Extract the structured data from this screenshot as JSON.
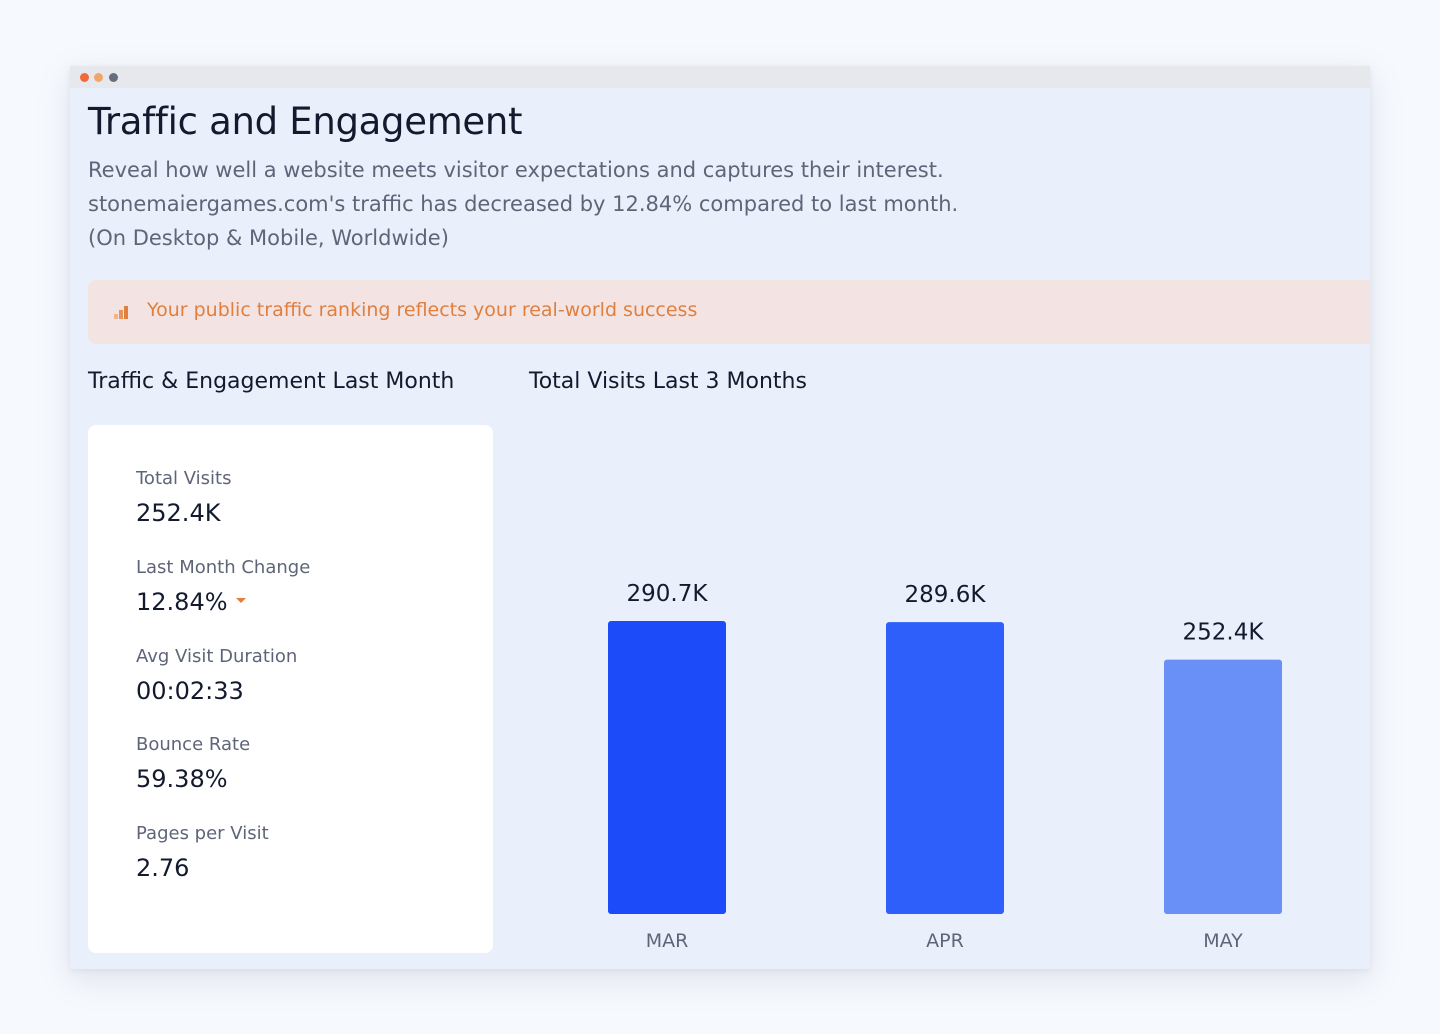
{
  "window": {
    "dots": [
      {
        "name": "window-dot-red",
        "color": "#f06b3c"
      },
      {
        "name": "window-dot-orange",
        "color": "#f2a56a"
      },
      {
        "name": "window-dot-gray",
        "color": "#666d7e"
      }
    ]
  },
  "header": {
    "title": "Traffic and Engagement",
    "description_lines": [
      "Reveal how well a website meets visitor expectations and captures their interest.",
      "stonemaiergames.com's traffic has decreased by 12.84% compared to last month.",
      "(On Desktop & Mobile, Worldwide)"
    ]
  },
  "banner": {
    "icon": "bar-chart-icon",
    "text": "Your public traffic ranking reflects your real-world success",
    "color": "#e07f3e"
  },
  "left_section": {
    "title": "Traffic & Engagement Last Month",
    "stats": [
      {
        "label": "Total Visits",
        "value": "252.4K"
      },
      {
        "label": "Last Month Change",
        "value": "12.84%",
        "trend": "down"
      },
      {
        "label": "Avg Visit Duration",
        "value": "00:02:33"
      },
      {
        "label": "Bounce Rate",
        "value": "59.38%"
      },
      {
        "label": "Pages per Visit",
        "value": "2.76"
      }
    ]
  },
  "right_section": {
    "title": "Total Visits Last 3 Months"
  },
  "chart_data": {
    "type": "bar",
    "title": "Total Visits Last 3 Months",
    "categories": [
      "MAR",
      "APR",
      "MAY"
    ],
    "values": [
      290.7,
      289.6,
      252.4
    ],
    "data_labels": [
      "290.7K",
      "289.6K",
      "252.4K"
    ],
    "unit": "K visits",
    "ylim": [
      0,
      290.7
    ],
    "colors": [
      "#1c4bf9",
      "#2e5ffa",
      "#6890f7"
    ],
    "xlabel": "",
    "ylabel": ""
  }
}
